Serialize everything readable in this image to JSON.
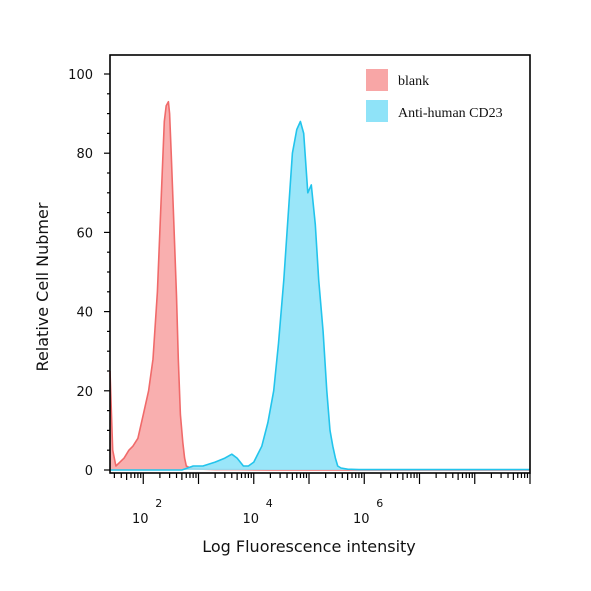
{
  "chart_data": {
    "type": "area",
    "xlabel": "Log Fluorescence intensity",
    "ylabel": "Relative Cell Nubmer",
    "x_scale": "log",
    "xlim": [
      25,
      1000000000
    ],
    "ylim": [
      0,
      100
    ],
    "x_tick_base": "10",
    "x_ticks": [
      {
        "value": 100,
        "exp": "2"
      },
      {
        "value": 10000,
        "exp": "4"
      },
      {
        "value": 1000000,
        "exp": "6"
      }
    ],
    "y_ticks": [
      0,
      20,
      40,
      60,
      80,
      100
    ],
    "legend_position": "top-right",
    "series": [
      {
        "name": "blank",
        "color": "#f06a6a",
        "fill": "#f8a6a6",
        "x": [
          25,
          28,
          32,
          38,
          45,
          55,
          65,
          80,
          100,
          125,
          150,
          180,
          210,
          240,
          260,
          285,
          300,
          320,
          350,
          400,
          430,
          470,
          520,
          560,
          600,
          700,
          900,
          1200,
          2000,
          5000,
          20000,
          100000,
          1000000,
          1000000000
        ],
        "y": [
          25,
          5,
          1,
          2,
          3,
          5,
          6,
          8,
          14,
          20,
          28,
          45,
          68,
          88,
          92,
          93,
          90,
          80,
          66,
          44,
          28,
          14,
          7,
          3,
          1,
          0.5,
          0.3,
          0.2,
          0.1,
          0.1,
          0,
          0,
          0,
          0
        ]
      },
      {
        "name": "Anti-human CD23",
        "color": "#22c4ec",
        "fill": "#8fe3f8",
        "x": [
          25,
          500,
          800,
          1200,
          2000,
          3000,
          4000,
          5000,
          6500,
          8000,
          10000,
          14000,
          18000,
          23000,
          28000,
          35000,
          40000,
          50000,
          60000,
          70000,
          80000,
          95000,
          110000,
          130000,
          150000,
          180000,
          210000,
          240000,
          270000,
          300000,
          330000,
          380000,
          500000,
          800000,
          1000000000
        ],
        "y": [
          0,
          0,
          1,
          1,
          2,
          3,
          4,
          3,
          1,
          1,
          2,
          6,
          12,
          20,
          32,
          48,
          60,
          80,
          86,
          88,
          85,
          70,
          72,
          62,
          48,
          35,
          20,
          10,
          6,
          3,
          1,
          0.5,
          0.2,
          0.1,
          0.1
        ]
      }
    ]
  }
}
